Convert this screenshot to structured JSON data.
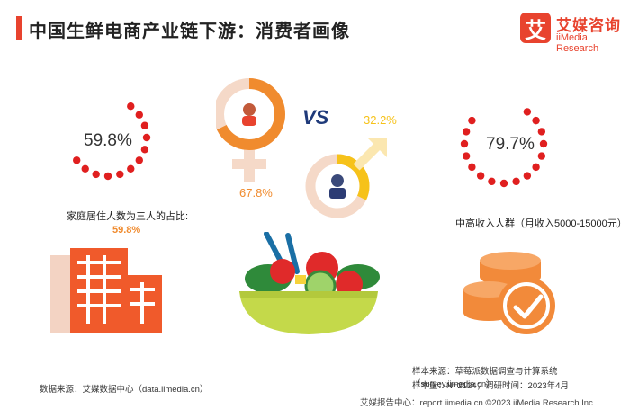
{
  "header": {
    "title": "中国生鲜电商产业链下游：消费者画像",
    "logo_mark": "艾",
    "logo_cn": "艾媒咨询",
    "logo_en": "iiMedia Research"
  },
  "chart_data": [
    {
      "type": "pie",
      "title": "家庭居住人数为三人的占比:",
      "values": [
        59.8
      ],
      "center_label": "59.8%",
      "value_label": "59.8%",
      "unit": "%"
    },
    {
      "type": "pie",
      "categories": [
        "female",
        "male"
      ],
      "values": [
        67.8,
        32.2
      ],
      "value_labels": [
        "67.8%",
        "32.2%"
      ],
      "vs_label": "VS"
    },
    {
      "type": "pie",
      "title": "中高收入人群（月收入5000-15000元）",
      "values": [
        79.7
      ],
      "center_label": "79.7%",
      "unit": "%"
    }
  ],
  "sources": {
    "left": "数据来源：艾媒数据中心（data.iimedia.cn）",
    "right_line1": "样本来源：草莓派数据调查与计算系统（survey.iimedia.cn）",
    "right_line2": "样本量：N=2124；调研时间：2023年4月"
  },
  "footer": "艾媒报告中心：report.iimedia.cn ©2023 iiMedia Research Inc",
  "colors": {
    "accent": "#e8432e",
    "dot": "#e01f1f",
    "orange": "#f08b2e",
    "yellow": "#f6c21a",
    "salad_bowl": "#c4d94a"
  },
  "icons": [
    "building-icon",
    "salad-bowl-icon",
    "coins-icon",
    "female-symbol-icon",
    "male-symbol-icon"
  ]
}
